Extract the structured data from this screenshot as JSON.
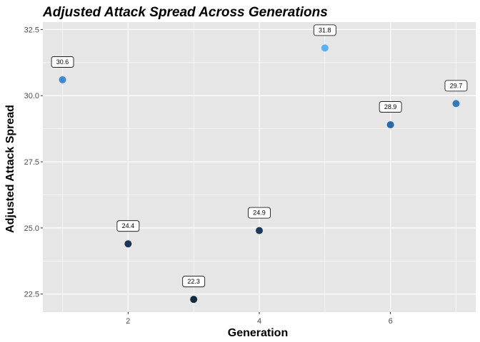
{
  "chart_data": {
    "type": "scatter",
    "title": "Adjusted Attack Spread Across Generations",
    "xlabel": "Generation",
    "ylabel": "Adjusted Attack Spread",
    "x": [
      1,
      2,
      3,
      4,
      5,
      6,
      7
    ],
    "y": [
      30.6,
      24.4,
      22.3,
      24.9,
      31.8,
      28.9,
      29.7
    ],
    "labels": [
      "30.6",
      "24.4",
      "22.3",
      "24.9",
      "31.8",
      "28.9",
      "29.7"
    ],
    "point_colors": [
      "#3d8ad6",
      "#1a3657",
      "#132b43",
      "#1c3a5d",
      "#56b1f7",
      "#2c6aa6",
      "#3479bc"
    ],
    "xlim": [
      0.7,
      7.3
    ],
    "ylim": [
      21.82,
      32.78
    ],
    "x_ticks": [
      2,
      4,
      6
    ],
    "x_tick_labels": [
      "2",
      "4",
      "6"
    ],
    "y_ticks": [
      22.5,
      25.0,
      27.5,
      30.0,
      32.5
    ],
    "y_tick_labels": [
      "22.5",
      "25.0",
      "27.5",
      "30.0",
      "32.5"
    ],
    "grid": true,
    "legend": "none",
    "panel_background": "#e6e6e6",
    "grid_color": "#ffffff"
  }
}
